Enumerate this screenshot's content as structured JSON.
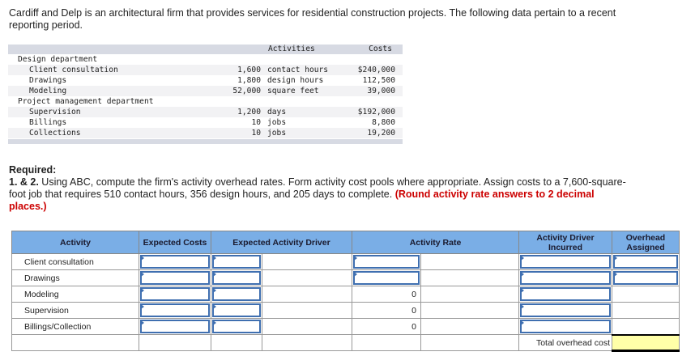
{
  "intro": "Cardiff and Delp is an architectural firm that provides services for residential construction projects. The following data pertain to a recent reporting period.",
  "data_table": {
    "headers": {
      "activities": "Activities",
      "costs": "Costs"
    },
    "rows": [
      {
        "name": "Design department",
        "sub": false
      },
      {
        "name": "Client consultation",
        "sub": true,
        "qty": "1,600",
        "unit": "contact hours",
        "cost": "$240,000"
      },
      {
        "name": "Drawings",
        "sub": true,
        "qty": "1,800",
        "unit": "design hours",
        "cost": "112,500"
      },
      {
        "name": "Modeling",
        "sub": true,
        "qty": "52,000",
        "unit": "square feet",
        "cost": "39,000"
      },
      {
        "name": "Project management department",
        "sub": false
      },
      {
        "name": "Supervision",
        "sub": true,
        "qty": "1,200",
        "unit": "days",
        "cost": "$192,000"
      },
      {
        "name": "Billings",
        "sub": true,
        "qty": "10",
        "unit": "jobs",
        "cost": "8,800"
      },
      {
        "name": "Collections",
        "sub": true,
        "qty": "10",
        "unit": "jobs",
        "cost": "19,200"
      }
    ]
  },
  "required": {
    "heading": "Required:",
    "number": "1. & 2.",
    "text": " Using ABC, compute the firm's activity overhead rates. Form activity cost pools where appropriate. Assign costs to a 7,600-square-foot job that requires 510 contact hours, 356 design hours, and 205 days to complete. ",
    "note": "(Round activity rate answers to 2 decimal places.)"
  },
  "answer_table": {
    "headers": [
      "Activity",
      "Expected Costs",
      "Expected Activity Driver",
      "Activity Rate",
      "Activity Driver Incurred",
      "Overhead Assigned"
    ],
    "rows": [
      {
        "activity": "Client consultation",
        "rate": ""
      },
      {
        "activity": "Drawings",
        "rate": ""
      },
      {
        "activity": "Modeling",
        "rate": "0"
      },
      {
        "activity": "Supervision",
        "rate": "0"
      },
      {
        "activity": "Billings/Collection",
        "rate": "0"
      }
    ],
    "total_label": "Total overhead cost"
  },
  "colors": {
    "header_bg": "#7aaee6",
    "input_border": "#3f6fb0",
    "total_bg": "#ffffa8",
    "note": "#cc0000"
  }
}
